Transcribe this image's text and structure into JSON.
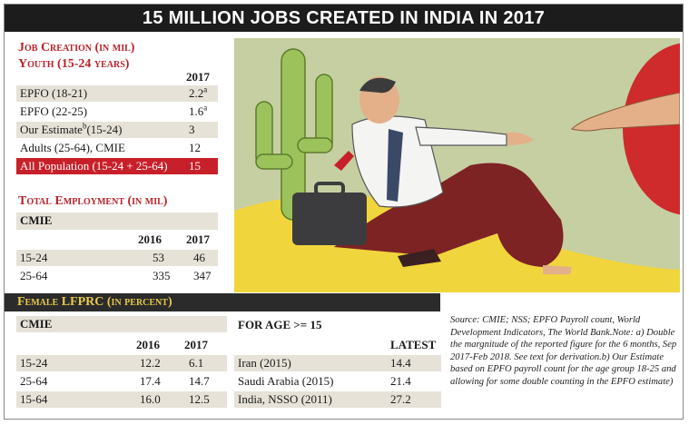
{
  "headline": "15 MILLION JOBS CREATED IN INDIA IN 2017",
  "job_creation": {
    "title_line1": "Job Creation (in mil)",
    "title_line2": "Youth (15-24 years)",
    "year": "2017",
    "rows": [
      {
        "label": "EPFO (18-21)",
        "sup": "",
        "label_suffix": "",
        "value": "2.2",
        "value_sup": "a"
      },
      {
        "label": "EPFO (22-25)",
        "sup": "",
        "label_suffix": "",
        "value": "1.6",
        "value_sup": "a"
      },
      {
        "label": "Our Estimate",
        "sup": "b",
        "label_suffix": "(15-24)",
        "value": "3",
        "value_sup": ""
      },
      {
        "label": "Adults (25-64), CMIE",
        "sup": "",
        "label_suffix": "",
        "value": "12",
        "value_sup": ""
      },
      {
        "label": "All Population (15-24 + 25-64)",
        "sup": "",
        "label_suffix": "",
        "value": "15",
        "value_sup": ""
      }
    ]
  },
  "total_employment": {
    "title": "Total Employment (in mil)",
    "source": "CMIE",
    "years": [
      "2016",
      "2017"
    ],
    "rows": [
      {
        "label": "15-24",
        "v2016": "53",
        "v2017": "46"
      },
      {
        "label": "25-64",
        "v2016": "335",
        "v2017": "347"
      }
    ]
  },
  "female_lfprc": {
    "title": "Female LFPRC (in percent)",
    "source": "CMIE",
    "years": [
      "2016",
      "2017"
    ],
    "rows": [
      {
        "label": "15-24",
        "v2016": "12.2",
        "v2017": "6.1"
      },
      {
        "label": "25-64",
        "v2016": "17.4",
        "v2017": "14.7"
      },
      {
        "label": "15-64",
        "v2016": "16.0",
        "v2017": "12.5"
      }
    ],
    "age_title": "FOR AGE >= 15",
    "latest_label": "LATEST",
    "country_rows": [
      {
        "label": "Iran (2015)",
        "value": "14.4"
      },
      {
        "label": "Saudi Arabia (2015)",
        "value": "21.4"
      },
      {
        "label": "India, NSSO (2011)",
        "value": "27.2"
      }
    ]
  },
  "source_note": "Source: CMIE; NSS; EPFO Payroll count, World Development Indicators, The World Bank.Note: a) Double the margnitude of the reported figure for the 6 months, Sep 2017-Feb 2018. See text for derivation.b) Our Estimate based on EPFO payroll count for the age group 18-25 and allowing for some double counting in the EPFO estimate)",
  "colors": {
    "accent_red": "#b8232b",
    "highlight_row": "#c8202a",
    "band": "#2b2b2b",
    "band_text": "#e8c94d",
    "shade": "#e6e2d8"
  }
}
